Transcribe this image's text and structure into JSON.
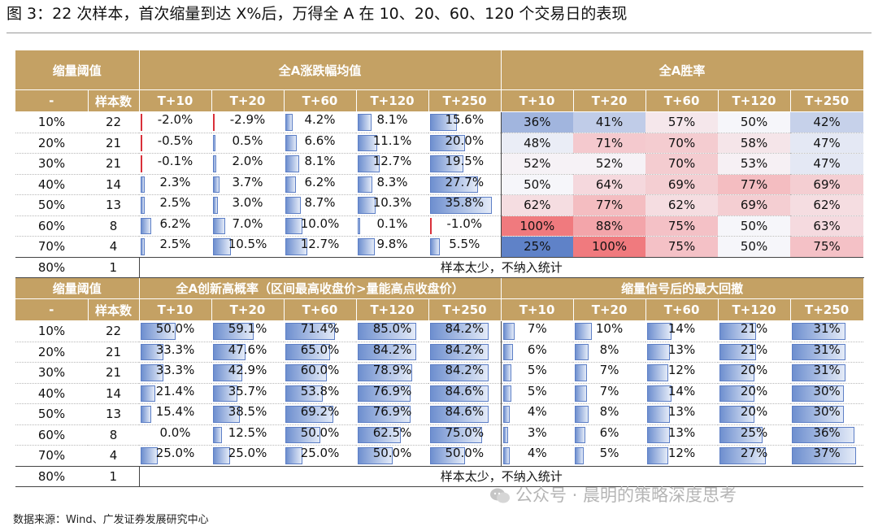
{
  "title": "图 3：22 次样本，首次缩量到达 X%后，万得全 A 在 10、20、60、120 个交易日的表现",
  "source": "数据来源：Wind、广发证券发展研究中心",
  "watermark": "公众号 · 晨明的策略深度思考",
  "colors": {
    "header_bg": "#c4a164",
    "bar_blue": "#5d7fc6",
    "bar_red": "#d9303a"
  },
  "section1": {
    "h_threshold": "缩量阈值",
    "h_return": "全A涨跌幅均值",
    "h_win": "全A胜率",
    "col_dash": "-",
    "col_samples": "样本数",
    "periods": [
      "T+10",
      "T+20",
      "T+60",
      "T+120",
      "T+250"
    ],
    "rows": [
      {
        "th": "10%",
        "n": "22",
        "ret": [
          "-2.0%",
          "-2.9%",
          "4.2%",
          "8.1%",
          "15.6%"
        ],
        "win": [
          "36%",
          "41%",
          "57%",
          "50%",
          "42%"
        ]
      },
      {
        "th": "20%",
        "n": "21",
        "ret": [
          "-0.5%",
          "0.5%",
          "6.6%",
          "11.1%",
          "20.0%"
        ],
        "win": [
          "48%",
          "71%",
          "70%",
          "58%",
          "47%"
        ]
      },
      {
        "th": "30%",
        "n": "21",
        "ret": [
          "-0.1%",
          "2.0%",
          "8.1%",
          "12.7%",
          "19.5%"
        ],
        "win": [
          "52%",
          "52%",
          "70%",
          "53%",
          "47%"
        ]
      },
      {
        "th": "40%",
        "n": "14",
        "ret": [
          "2.3%",
          "3.7%",
          "6.2%",
          "8.3%",
          "27.7%"
        ],
        "win": [
          "50%",
          "64%",
          "69%",
          "77%",
          "69%"
        ]
      },
      {
        "th": "50%",
        "n": "13",
        "ret": [
          "2.5%",
          "3.0%",
          "8.7%",
          "10.3%",
          "35.8%"
        ],
        "win": [
          "62%",
          "77%",
          "62%",
          "69%",
          "62%"
        ]
      },
      {
        "th": "60%",
        "n": "8",
        "ret": [
          "6.2%",
          "7.0%",
          "10.0%",
          "0.1%",
          "-1.0%"
        ],
        "win": [
          "100%",
          "88%",
          "75%",
          "50%",
          "63%"
        ]
      },
      {
        "th": "70%",
        "n": "4",
        "ret": [
          "2.5%",
          "10.5%",
          "12.7%",
          "9.8%",
          "5.5%"
        ],
        "win": [
          "25%",
          "100%",
          "75%",
          "50%",
          "75%"
        ]
      }
    ],
    "note_row": {
      "th": "80%",
      "n": "1",
      "msg": "样本太少，不纳入统计"
    }
  },
  "section2": {
    "h_threshold": "缩量阈值",
    "h_newhigh": "全A创新高概率（区间最高收盘价>量能高点收盘价）",
    "h_drawdown": "缩量信号后的最大回撤",
    "col_dash": "-",
    "col_samples": "样本数",
    "periods": [
      "T+10",
      "T+20",
      "T+60",
      "T+120",
      "T+250"
    ],
    "rows": [
      {
        "th": "10%",
        "n": "22",
        "hi": [
          "50.0%",
          "59.1%",
          "71.4%",
          "85.0%",
          "84.2%"
        ],
        "dd": [
          "7%",
          "10%",
          "14%",
          "21%",
          "31%"
        ]
      },
      {
        "th": "20%",
        "n": "21",
        "hi": [
          "33.3%",
          "47.6%",
          "65.0%",
          "84.2%",
          "84.2%"
        ],
        "dd": [
          "6%",
          "8%",
          "13%",
          "21%",
          "31%"
        ]
      },
      {
        "th": "30%",
        "n": "21",
        "hi": [
          "33.3%",
          "42.9%",
          "60.0%",
          "78.9%",
          "84.2%"
        ],
        "dd": [
          "5%",
          "7%",
          "12%",
          "20%",
          "31%"
        ]
      },
      {
        "th": "40%",
        "n": "14",
        "hi": [
          "21.4%",
          "35.7%",
          "53.8%",
          "76.9%",
          "84.6%"
        ],
        "dd": [
          "5%",
          "7%",
          "14%",
          "20%",
          "30%"
        ]
      },
      {
        "th": "50%",
        "n": "13",
        "hi": [
          "15.4%",
          "38.5%",
          "69.2%",
          "76.9%",
          "84.6%"
        ],
        "dd": [
          "4%",
          "8%",
          "13%",
          "20%",
          "30%"
        ]
      },
      {
        "th": "60%",
        "n": "8",
        "hi": [
          "0.0%",
          "12.5%",
          "50.0%",
          "62.5%",
          "75.0%"
        ],
        "dd": [
          "3%",
          "6%",
          "13%",
          "25%",
          "36%"
        ]
      },
      {
        "th": "70%",
        "n": "4",
        "hi": [
          "25.0%",
          "25.0%",
          "25.0%",
          "50.0%",
          "50.0%"
        ],
        "dd": [
          "4%",
          "5%",
          "12%",
          "27%",
          "37%"
        ]
      }
    ],
    "note_row": {
      "th": "80%",
      "n": "1",
      "msg": "样本太少，不纳入统计"
    }
  }
}
